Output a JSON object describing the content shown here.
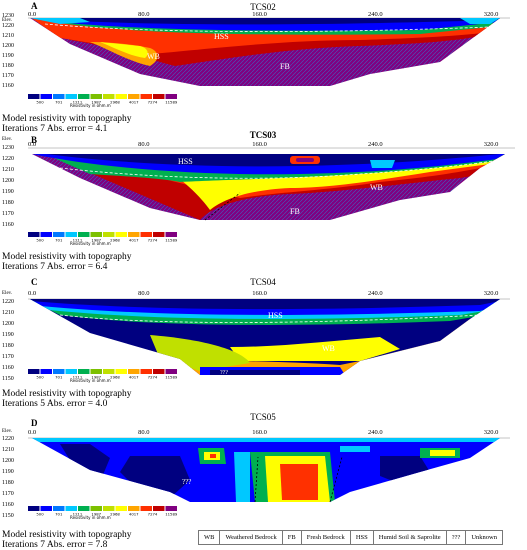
{
  "colors": {
    "scale": [
      "#000080",
      "#0000ff",
      "#0078ff",
      "#00c8ff",
      "#00b050",
      "#7cc000",
      "#c0e000",
      "#ffff00",
      "#ffa500",
      "#ff3000",
      "#c00000",
      "#800080"
    ],
    "topo": "#ffffff",
    "hatch": "#4060c0"
  },
  "panels": [
    {
      "letter": "A",
      "title": "TCS02",
      "elev_label": "Elev.",
      "elev_ticks": [
        "1230",
        "1220",
        "1210",
        "1200",
        "1190",
        "1180",
        "1170",
        "1160",
        "1150"
      ],
      "x_ticks": [
        "0.0",
        "80.0",
        "160.0",
        "240.0",
        "320.0"
      ],
      "x_tick_values": [
        0,
        80,
        160,
        240,
        320
      ],
      "x_range": [
        0,
        340
      ],
      "labels": [
        "HSS",
        "WB",
        "FB"
      ],
      "colorbar_values": [
        "500",
        "701",
        "1211",
        "1987",
        "2968",
        "4017",
        "7274",
        "11589"
      ],
      "colorbar_caption": "Resistivity in ohm.m",
      "caption1": "Model resistivity with topography",
      "caption2": "Iterations 7 Abs. error = 4.1"
    },
    {
      "letter": "B",
      "title": "TCS03",
      "elev_label": "Elev.",
      "elev_ticks": [
        "1230",
        "1220",
        "1210",
        "1200",
        "1190",
        "1180",
        "1170",
        "1160",
        "1150"
      ],
      "x_ticks": [
        "0.0",
        "80.0",
        "160.0",
        "240.0",
        "320.0"
      ],
      "x_tick_values": [
        0,
        80,
        160,
        240,
        320
      ],
      "x_range": [
        0,
        340
      ],
      "labels": [
        "HSS",
        "WB",
        "FB"
      ],
      "colorbar_values": [
        "500",
        "701",
        "1211",
        "1987",
        "2968",
        "4017",
        "7274",
        "11589"
      ],
      "colorbar_caption": "Resistivity in ohm.m",
      "caption1": "Model resistivity with topography",
      "caption2": "Iterations 7 Abs. error = 6.4"
    },
    {
      "letter": "C",
      "title": "TCS04",
      "elev_label": "Elev.",
      "elev_ticks": [
        "1220",
        "1210",
        "1200",
        "1190",
        "1180",
        "1170",
        "1160",
        "1150"
      ],
      "x_ticks": [
        "0.0",
        "80.0",
        "160.0",
        "240.0",
        "320.0"
      ],
      "x_tick_values": [
        0,
        80,
        160,
        240,
        320
      ],
      "x_range": [
        0,
        340
      ],
      "labels": [
        "HSS",
        "WB",
        "???"
      ],
      "colorbar_values": [
        "500",
        "701",
        "1211",
        "1987",
        "2968",
        "4017",
        "7274",
        "11589"
      ],
      "colorbar_caption": "Resistivity in ohm.m",
      "caption1": "Model resistivity with topography",
      "caption2": "Iterations 5 Abs. error = 4.0"
    },
    {
      "letter": "D",
      "title": "TCS05",
      "elev_label": "Elev.",
      "elev_ticks": [
        "1220",
        "1210",
        "1200",
        "1190",
        "1180",
        "1170",
        "1160",
        "1150"
      ],
      "x_ticks": [
        "0.0",
        "80.0",
        "160.0",
        "240.0",
        "320.0"
      ],
      "x_tick_values": [
        0,
        80,
        160,
        240,
        320
      ],
      "x_range": [
        0,
        340
      ],
      "labels": [
        "???"
      ],
      "colorbar_values": [
        "500",
        "701",
        "1211",
        "1987",
        "2968",
        "4017",
        "7274",
        "11589"
      ],
      "colorbar_caption": "Resistivity in ohm.m",
      "caption1": "Model resistivity with topography",
      "caption2": "Iterations 7 Abs. error = 7.8"
    }
  ],
  "legend": [
    {
      "abbr": "WB",
      "text": "Weathered Bedrock"
    },
    {
      "abbr": "FB",
      "text": "Fresh Bedrock"
    },
    {
      "abbr": "HSS",
      "text": "Humid Soil & Saprolite"
    },
    {
      "abbr": "???",
      "text": "Unknown"
    }
  ],
  "chart_data": [
    {
      "type": "heatmap",
      "title": "TCS02",
      "x_ticks": [
        0,
        80,
        160,
        240,
        320
      ],
      "y_ticks": [
        1230,
        1220,
        1210,
        1200,
        1190,
        1180,
        1170,
        1160,
        1150
      ],
      "legend": [
        "500",
        "701",
        "1211",
        "1987",
        "2968",
        "4017",
        "7274",
        "11589"
      ],
      "legend_title": "Resistivity in ohm.m",
      "annotations": [
        "HSS",
        "WB",
        "FB"
      ]
    },
    {
      "type": "heatmap",
      "title": "TCS03",
      "x_ticks": [
        0,
        80,
        160,
        240,
        320
      ],
      "y_ticks": [
        1230,
        1220,
        1210,
        1200,
        1190,
        1180,
        1170,
        1160,
        1150
      ],
      "legend": [
        "500",
        "701",
        "1211",
        "1987",
        "2968",
        "4017",
        "7274",
        "11589"
      ],
      "legend_title": "Resistivity in ohm.m",
      "annotations": [
        "HSS",
        "WB",
        "FB"
      ]
    },
    {
      "type": "heatmap",
      "title": "TCS04",
      "x_ticks": [
        0,
        80,
        160,
        240,
        320
      ],
      "y_ticks": [
        1220,
        1210,
        1200,
        1190,
        1180,
        1170,
        1160,
        1150
      ],
      "legend": [
        "500",
        "701",
        "1211",
        "1987",
        "2968",
        "4017",
        "7274",
        "11589"
      ],
      "legend_title": "Resistivity in ohm.m",
      "annotations": [
        "HSS",
        "WB",
        "???"
      ]
    },
    {
      "type": "heatmap",
      "title": "TCS05",
      "x_ticks": [
        0,
        80,
        160,
        240,
        320
      ],
      "y_ticks": [
        1220,
        1210,
        1200,
        1190,
        1180,
        1170,
        1160,
        1150
      ],
      "legend": [
        "500",
        "701",
        "1211",
        "1987",
        "2968",
        "4017",
        "7274",
        "11589"
      ],
      "legend_title": "Resistivity in ohm.m",
      "annotations": [
        "???"
      ]
    }
  ]
}
